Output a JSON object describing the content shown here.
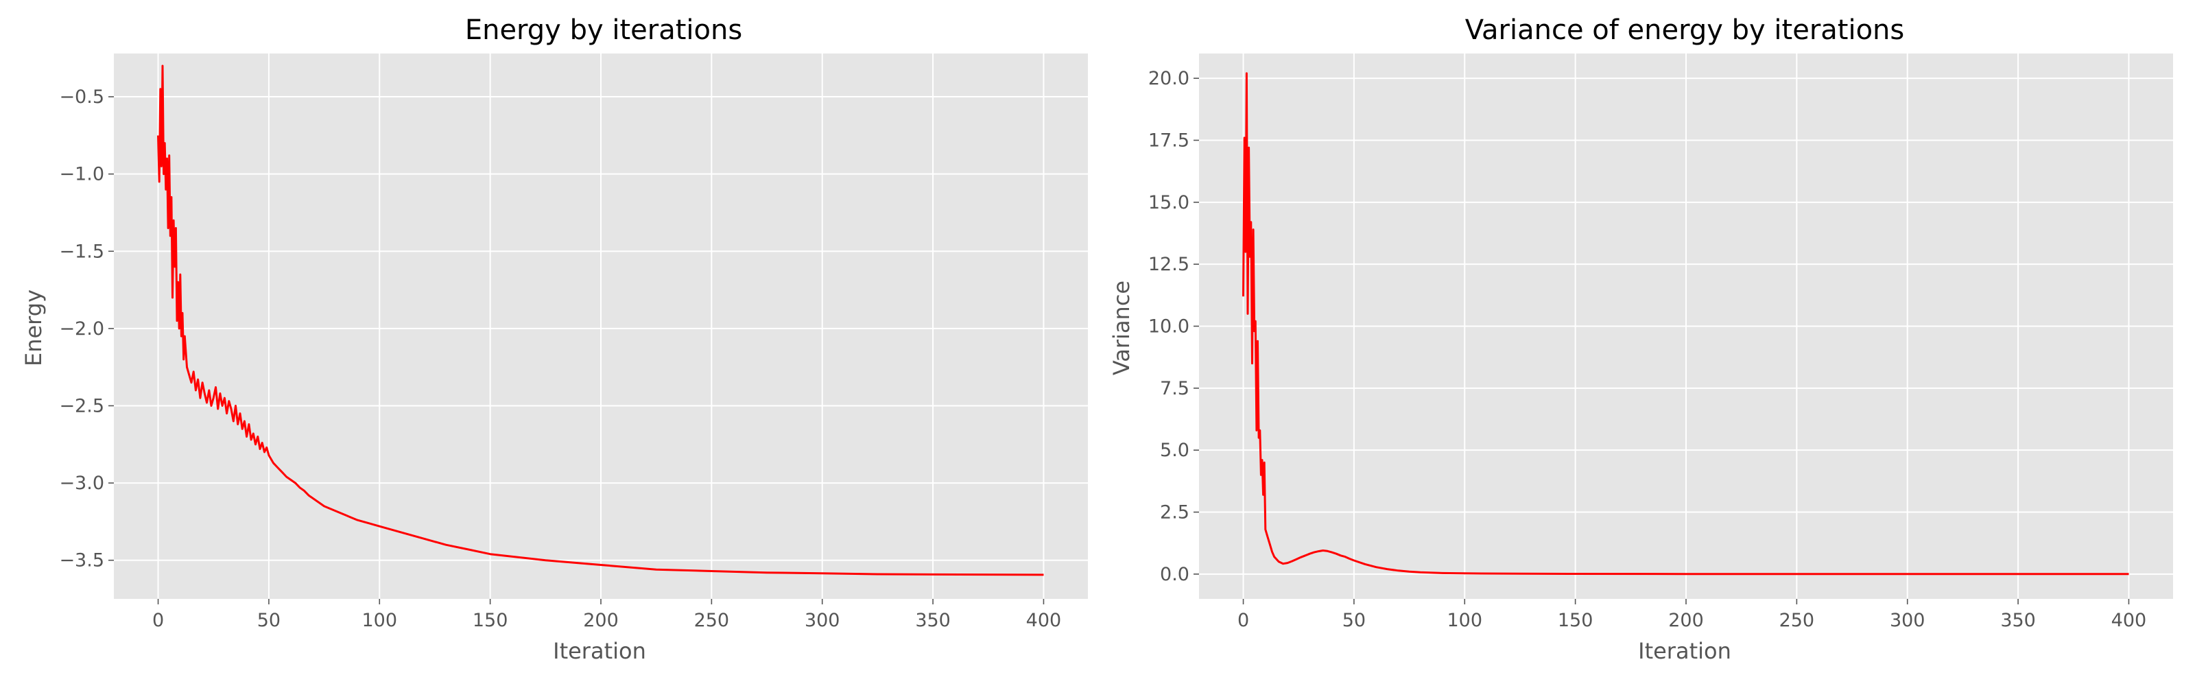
{
  "colors": {
    "plot_background": "#E5E5E5",
    "grid": "#FFFFFF",
    "series_line": "#FF0000",
    "tick_text": "#555555",
    "title_text": "#000000"
  },
  "chart_data": [
    {
      "type": "line",
      "title": "Energy by iterations",
      "xlabel": "Iteration",
      "ylabel": "Energy",
      "xlim": [
        -20,
        420
      ],
      "ylim": [
        -3.75,
        -0.22
      ],
      "grid": true,
      "legend": "none",
      "xticks": [
        0,
        50,
        100,
        150,
        200,
        250,
        300,
        350,
        400
      ],
      "xtick_labels": [
        "0",
        "50",
        "100",
        "150",
        "200",
        "250",
        "300",
        "350",
        "400"
      ],
      "yticks": [
        -0.5,
        -1.0,
        -1.5,
        -2.0,
        -2.5,
        -3.0,
        -3.5
      ],
      "ytick_labels": [
        "−0.5",
        "−1.0",
        "−1.5",
        "−2.0",
        "−2.5",
        "−3.0",
        "−3.5"
      ],
      "series": [
        {
          "color": "#FF0000",
          "x": [
            0,
            0.5,
            1,
            1.5,
            2,
            2.5,
            3,
            3.5,
            4,
            4.5,
            5,
            5.5,
            6,
            6.5,
            7,
            7.5,
            8,
            8.5,
            9,
            9.5,
            10,
            10.5,
            11,
            11.5,
            12,
            13,
            14,
            15,
            16,
            17,
            18,
            19,
            20,
            21,
            22,
            23,
            24,
            25,
            26,
            27,
            28,
            29,
            30,
            31,
            32,
            33,
            34,
            35,
            36,
            37,
            38,
            39,
            40,
            41,
            42,
            43,
            44,
            45,
            46,
            47,
            48,
            49,
            50,
            52,
            54,
            56,
            58,
            60,
            62,
            64,
            66,
            68,
            70,
            75,
            80,
            85,
            90,
            95,
            100,
            110,
            120,
            130,
            140,
            150,
            175,
            200,
            225,
            250,
            275,
            300,
            325,
            350,
            375,
            400
          ],
          "y": [
            -0.75,
            -1.05,
            -0.45,
            -0.95,
            -0.3,
            -1.0,
            -0.8,
            -1.1,
            -0.9,
            -1.35,
            -0.88,
            -1.4,
            -1.15,
            -1.8,
            -1.3,
            -1.6,
            -1.35,
            -1.95,
            -1.7,
            -2.0,
            -1.65,
            -2.05,
            -1.9,
            -2.2,
            -2.05,
            -2.25,
            -2.3,
            -2.35,
            -2.28,
            -2.4,
            -2.33,
            -2.45,
            -2.35,
            -2.42,
            -2.48,
            -2.4,
            -2.5,
            -2.45,
            -2.38,
            -2.52,
            -2.42,
            -2.5,
            -2.45,
            -2.55,
            -2.47,
            -2.52,
            -2.6,
            -2.5,
            -2.62,
            -2.55,
            -2.65,
            -2.6,
            -2.7,
            -2.62,
            -2.72,
            -2.68,
            -2.75,
            -2.7,
            -2.78,
            -2.74,
            -2.8,
            -2.77,
            -2.82,
            -2.87,
            -2.9,
            -2.93,
            -2.96,
            -2.98,
            -3.0,
            -3.03,
            -3.05,
            -3.08,
            -3.1,
            -3.15,
            -3.18,
            -3.21,
            -3.24,
            -3.26,
            -3.28,
            -3.32,
            -3.36,
            -3.4,
            -3.43,
            -3.46,
            -3.5,
            -3.53,
            -3.56,
            -3.57,
            -3.58,
            -3.585,
            -3.59,
            -3.592,
            -3.593,
            -3.594
          ]
        }
      ]
    },
    {
      "type": "line",
      "title": "Variance of energy by iterations",
      "xlabel": "Iteration",
      "ylabel": "Variance",
      "xlim": [
        -20,
        420
      ],
      "ylim": [
        -1.0,
        21.0
      ],
      "grid": true,
      "legend": "none",
      "xticks": [
        0,
        50,
        100,
        150,
        200,
        250,
        300,
        350,
        400
      ],
      "xtick_labels": [
        "0",
        "50",
        "100",
        "150",
        "200",
        "250",
        "300",
        "350",
        "400"
      ],
      "yticks": [
        0.0,
        2.5,
        5.0,
        7.5,
        10.0,
        12.5,
        15.0,
        17.5,
        20.0
      ],
      "ytick_labels": [
        "0.0",
        "2.5",
        "5.0",
        "7.5",
        "10.0",
        "12.5",
        "15.0",
        "17.5",
        "20.0"
      ],
      "series": [
        {
          "color": "#FF0000",
          "x": [
            0,
            0.5,
            1,
            1.5,
            2,
            2.5,
            3,
            3.5,
            4,
            4.5,
            5,
            5.5,
            6,
            6.5,
            7,
            7.5,
            8,
            8.5,
            9,
            9.5,
            10,
            11,
            12,
            13,
            14,
            16,
            18,
            20,
            22,
            24,
            26,
            28,
            30,
            32,
            34,
            36,
            38,
            40,
            42,
            44,
            46,
            48,
            50,
            55,
            60,
            65,
            70,
            75,
            80,
            90,
            100,
            125,
            150,
            200,
            250,
            300,
            350,
            400
          ],
          "y": [
            11.2,
            17.6,
            13.0,
            20.2,
            10.5,
            17.2,
            12.8,
            14.2,
            8.5,
            13.9,
            9.8,
            10.2,
            5.8,
            9.4,
            5.5,
            5.8,
            4.0,
            4.6,
            3.2,
            4.5,
            1.8,
            1.5,
            1.2,
            0.9,
            0.7,
            0.5,
            0.42,
            0.45,
            0.52,
            0.6,
            0.68,
            0.75,
            0.82,
            0.88,
            0.92,
            0.95,
            0.93,
            0.88,
            0.82,
            0.75,
            0.7,
            0.62,
            0.55,
            0.4,
            0.28,
            0.2,
            0.14,
            0.1,
            0.07,
            0.04,
            0.03,
            0.015,
            0.01,
            0.005,
            0.003,
            0.002,
            0.001,
            0.001
          ]
        }
      ]
    }
  ]
}
